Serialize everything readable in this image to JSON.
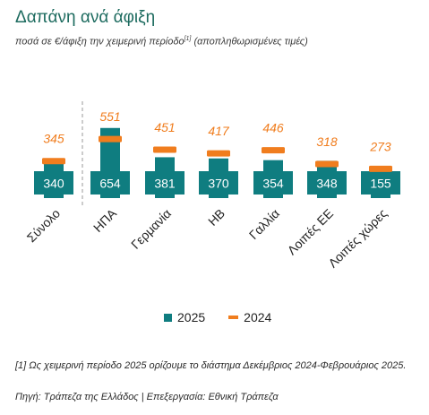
{
  "title": "Δαπάνη ανά άφιξη",
  "subtitle": "ποσά σε €/άφιξη την χειμερινή περίοδο",
  "subtitle_ref": "[1]",
  "subtitle_note": "(αποπληθωρισμένες τιμές)",
  "legend": {
    "series_2025": "2025",
    "series_2024": "2024"
  },
  "footnote": "[1] Ως χειμερινή περίοδο 2025 ορίζουμε το διάστημα Δεκέμβριος 2024-Φεβρουάριος 2025.",
  "source": "Πηγή: Τράπεζα της Ελλάδος | Επεξεργασία: Εθνική Τράπεζα",
  "colors": {
    "title": "#1d6b5f",
    "bar_2025": "#0f7d80",
    "marker_2024": "#f07d1e",
    "divider": "#9a9a9a"
  },
  "chart_data": {
    "type": "bar",
    "categories": [
      "Σύνολο",
      "ΗΠΑ",
      "Γερμανία",
      "ΗΒ",
      "Γαλλία",
      "Λοιπές ΕΕ",
      "Λοιπές χώρες"
    ],
    "series": [
      {
        "name": "2025",
        "type": "bar",
        "values": [
          340,
          654,
          381,
          370,
          354,
          348,
          155
        ]
      },
      {
        "name": "2024",
        "type": "marker",
        "values": [
          345,
          551,
          451,
          417,
          446,
          318,
          273
        ]
      }
    ],
    "legend_position": "bottom",
    "grid": false,
    "divider_after_category": 0
  }
}
